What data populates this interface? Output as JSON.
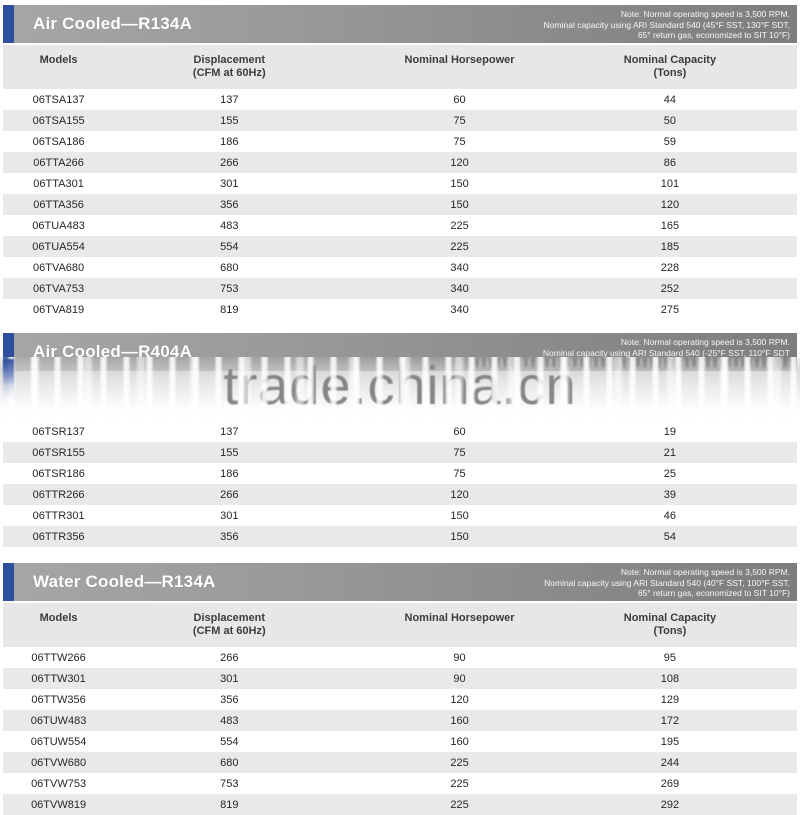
{
  "watermark": {
    "text": "trade.china.cn"
  },
  "colors": {
    "accent_blue": "#2e4e9e",
    "bar_gradient_left": "#a6a6a6",
    "bar_gradient_right": "#7d7d7d",
    "column_header_bg": "#e7e7e7",
    "row_stripe": "#e9e9e9",
    "watermark_gray": "#868686"
  },
  "sections": [
    {
      "title": "Air Cooled—R134A",
      "note_lines": [
        "Note: Normal operating speed is 3,500 RPM.",
        "Nominal capacity using ARI Standard 540 (45°F SST, 130°F SDT,",
        "65° return gas, economized to SIT 10°F)"
      ],
      "columns": [
        {
          "label": "Models",
          "sublabel": ""
        },
        {
          "label": "Displacement",
          "sublabel": "(CFM at 60Hz)"
        },
        {
          "label": "Nominal Horsepower",
          "sublabel": ""
        },
        {
          "label": "Nominal Capacity",
          "sublabel": "(Tons)"
        }
      ],
      "rows": [
        [
          "06TSA137",
          "137",
          "60",
          "44"
        ],
        [
          "06TSA155",
          "155",
          "75",
          "50"
        ],
        [
          "06TSA186",
          "186",
          "75",
          "59"
        ],
        [
          "06TTA266",
          "266",
          "120",
          "86"
        ],
        [
          "06TTA301",
          "301",
          "150",
          "101"
        ],
        [
          "06TTA356",
          "356",
          "150",
          "120"
        ],
        [
          "06TUA483",
          "483",
          "225",
          "165"
        ],
        [
          "06TUA554",
          "554",
          "225",
          "185"
        ],
        [
          "06TVA680",
          "680",
          "340",
          "228"
        ],
        [
          "06TVA753",
          "753",
          "340",
          "252"
        ],
        [
          "06TVA819",
          "819",
          "340",
          "275"
        ]
      ]
    },
    {
      "title": "Air Cooled—R404A",
      "note_lines": [
        "Note: Normal operating speed is 3,500 RPM.",
        "Nominal capacity using ARI Standard 540 (-25°F SST, 110°F SDT"
      ],
      "rows": [
        [
          "06TSR137",
          "137",
          "60",
          "19"
        ],
        [
          "06TSR155",
          "155",
          "75",
          "21"
        ],
        [
          "06TSR186",
          "186",
          "75",
          "25"
        ],
        [
          "06TTR266",
          "266",
          "120",
          "39"
        ],
        [
          "06TTR301",
          "301",
          "150",
          "46"
        ],
        [
          "06TTR356",
          "356",
          "150",
          "54"
        ]
      ]
    },
    {
      "title": "Water Cooled—R134A",
      "note_lines": [
        "Note: Normal operating speed is 3,500 RPM.",
        "Nominal capacity using ARI Standard 540 (40°F SST, 100°F SST,",
        "65° return gas, economized to SIT 10°F)"
      ],
      "columns": [
        {
          "label": "Models",
          "sublabel": ""
        },
        {
          "label": "Displacement",
          "sublabel": "(CFM at 60Hz)"
        },
        {
          "label": "Nominal Horsepower",
          "sublabel": ""
        },
        {
          "label": "Nominal Capacity",
          "sublabel": "(Tons)"
        }
      ],
      "rows": [
        [
          "06TTW266",
          "266",
          "90",
          "95"
        ],
        [
          "06TTW301",
          "301",
          "90",
          "108"
        ],
        [
          "06TTW356",
          "356",
          "120",
          "129"
        ],
        [
          "06TUW483",
          "483",
          "160",
          "172"
        ],
        [
          "06TUW554",
          "554",
          "160",
          "195"
        ],
        [
          "06TVW680",
          "680",
          "225",
          "244"
        ],
        [
          "06TVW753",
          "753",
          "225",
          "269"
        ],
        [
          "06TVW819",
          "819",
          "225",
          "292"
        ]
      ]
    }
  ]
}
